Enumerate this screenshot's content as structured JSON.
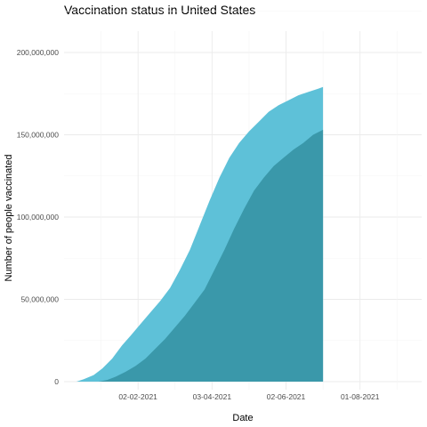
{
  "chart_data": {
    "type": "area",
    "title": "Vaccination status in United States",
    "xlabel": "Date",
    "ylabel": "Number of people vaccinated",
    "x_ticks": [
      "02-02-2021",
      "03-04-2021",
      "02-06-2021",
      "01-08-2021"
    ],
    "y_ticks": [
      "0",
      "50,000,000",
      "100,000,000",
      "150,000,000",
      "200,000,000"
    ],
    "ylim": [
      0,
      200000000
    ],
    "xlim": [
      "2020-12-04",
      "2021-09-20"
    ],
    "grid": true,
    "colors": {
      "at_least_one_dose": "#5ec1d8",
      "fully_vaccinated": "#3a98aa"
    },
    "series": [
      {
        "key": "at_least_one_dose",
        "x": [
          "2020-12-14",
          "2020-12-20",
          "2020-12-28",
          "2021-01-04",
          "2021-01-12",
          "2021-01-20",
          "2021-01-27",
          "2021-02-04",
          "2021-02-12",
          "2021-02-20",
          "2021-02-28",
          "2021-03-08",
          "2021-03-16",
          "2021-03-24",
          "2021-04-01",
          "2021-04-09",
          "2021-04-17",
          "2021-04-25",
          "2021-05-03",
          "2021-05-11",
          "2021-05-19",
          "2021-05-27",
          "2021-06-04",
          "2021-06-12",
          "2021-06-20",
          "2021-06-28",
          "2021-07-02"
        ],
        "values": [
          0,
          1500000,
          4000000,
          8000000,
          14000000,
          22000000,
          28000000,
          35000000,
          42000000,
          49000000,
          57000000,
          68000000,
          80000000,
          95000000,
          110000000,
          124000000,
          136000000,
          145000000,
          152000000,
          158000000,
          164000000,
          168000000,
          171000000,
          174000000,
          176000000,
          178000000,
          179000000
        ]
      },
      {
        "key": "fully_vaccinated",
        "x": [
          "2021-01-01",
          "2021-01-08",
          "2021-01-15",
          "2021-01-23",
          "2021-01-31",
          "2021-02-08",
          "2021-02-16",
          "2021-02-24",
          "2021-03-04",
          "2021-03-12",
          "2021-03-20",
          "2021-03-28",
          "2021-04-05",
          "2021-04-13",
          "2021-04-21",
          "2021-04-29",
          "2021-05-07",
          "2021-05-15",
          "2021-05-23",
          "2021-05-31",
          "2021-06-08",
          "2021-06-16",
          "2021-06-24",
          "2021-07-02"
        ],
        "values": [
          0,
          1000000,
          3000000,
          6000000,
          9500000,
          14000000,
          20000000,
          26000000,
          33000000,
          40000000,
          48000000,
          56000000,
          68000000,
          80000000,
          93000000,
          105000000,
          116000000,
          124000000,
          131000000,
          136000000,
          141000000,
          145000000,
          150000000,
          153000000
        ]
      }
    ]
  }
}
